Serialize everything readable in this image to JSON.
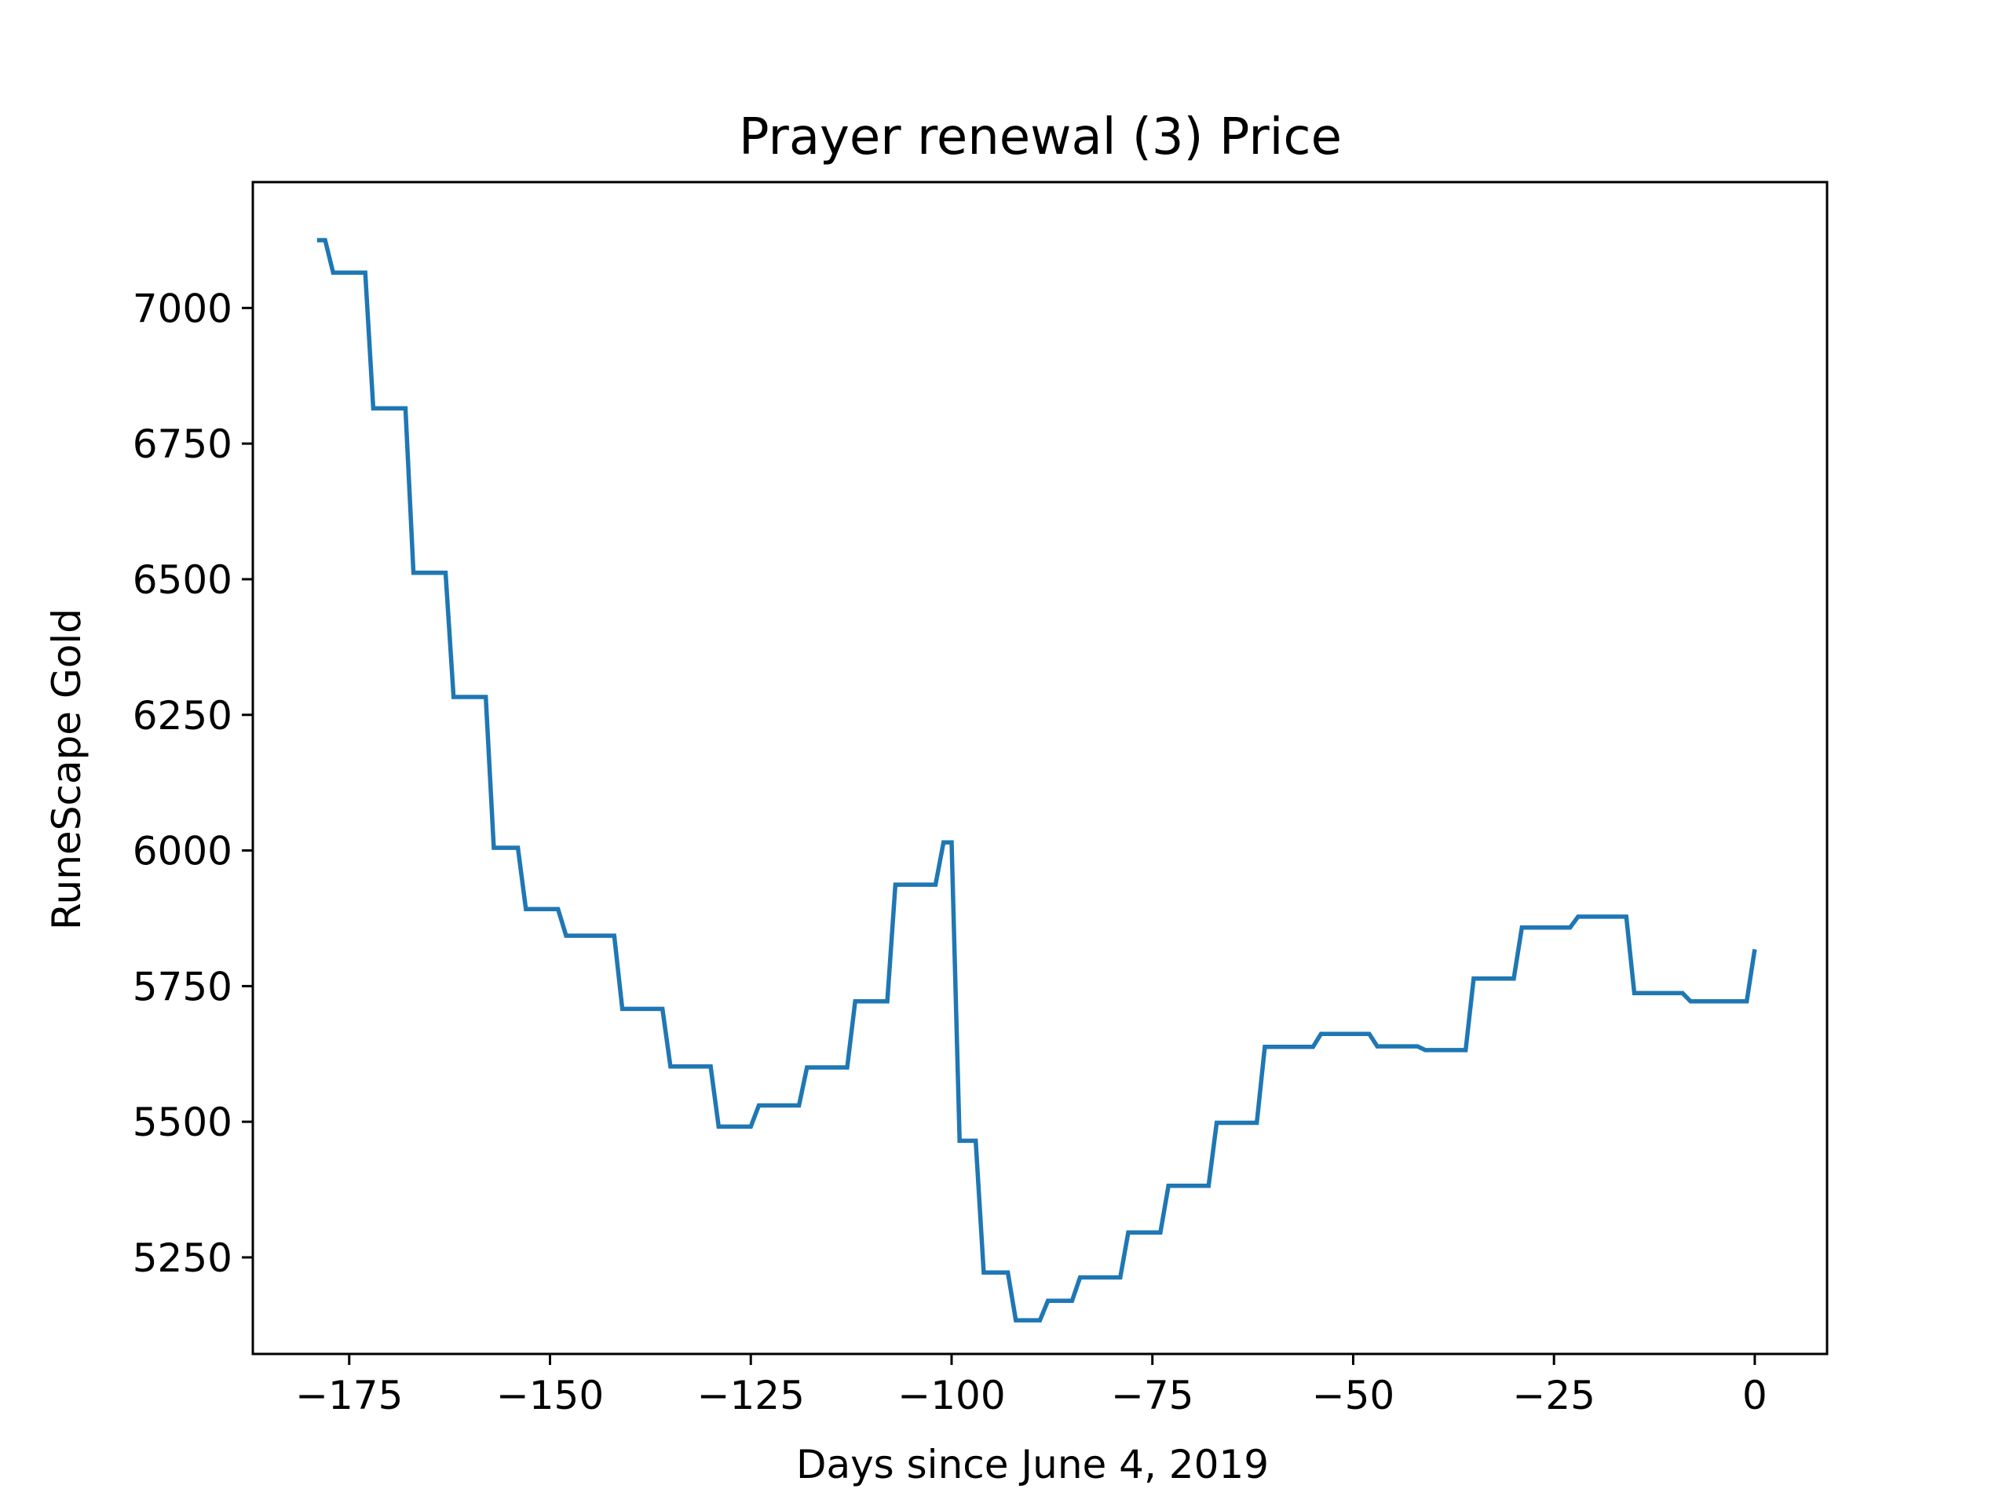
{
  "chart_data": {
    "type": "line",
    "title": "Prayer renewal (3) Price",
    "xlabel": "Days since June 4, 2019",
    "ylabel": "RuneScape Gold",
    "xlim": [
      -187,
      9
    ],
    "ylim": [
      5072,
      7232
    ],
    "xticks": [
      -175,
      -150,
      -125,
      -100,
      -75,
      -50,
      -25,
      0
    ],
    "xtick_labels": [
      "−175",
      "−150",
      "−125",
      "−100",
      "−75",
      "−50",
      "−25",
      "0"
    ],
    "yticks": [
      5250,
      5500,
      5750,
      6000,
      6250,
      6500,
      6750,
      7000
    ],
    "ytick_labels": [
      "5250",
      "5500",
      "5750",
      "6000",
      "6250",
      "6500",
      "6750",
      "7000"
    ],
    "grid": false,
    "line_color": "#1f77b4",
    "series": [
      {
        "x": [
          -179,
          -178,
          -177,
          -173,
          -172,
          -168,
          -167,
          -163,
          -162,
          -158,
          -157,
          -154,
          -153,
          -149,
          -148,
          -142,
          -141,
          -136,
          -135,
          -130,
          -129,
          -125,
          -124,
          -119,
          -118,
          -113,
          -112,
          -108,
          -107,
          -102,
          -101,
          -100,
          -99,
          -97,
          -96,
          -93,
          -92,
          -89,
          -88,
          -85,
          -84,
          -79,
          -78,
          -74,
          -73,
          -68,
          -67,
          -62,
          -61,
          -55,
          -54,
          -48,
          -47,
          -42,
          -41,
          -36,
          -35,
          -30,
          -29,
          -23,
          -22,
          -16,
          -15,
          -9,
          -8,
          -1,
          0
        ],
        "y": [
          7125,
          7125,
          7065,
          7065,
          6815,
          6815,
          6512,
          6512,
          6283,
          6283,
          6005,
          6005,
          5892,
          5892,
          5843,
          5843,
          5708,
          5708,
          5602,
          5602,
          5491,
          5491,
          5530,
          5530,
          5600,
          5600,
          5722,
          5722,
          5937,
          5937,
          6015,
          6015,
          5465,
          5465,
          5222,
          5222,
          5134,
          5134,
          5170,
          5170,
          5213,
          5213,
          5296,
          5296,
          5382,
          5382,
          5498,
          5498,
          5638,
          5638,
          5662,
          5662,
          5639,
          5639,
          5632,
          5632,
          5764,
          5764,
          5858,
          5858,
          5878,
          5878,
          5737,
          5737,
          5722,
          5722,
          5818
        ]
      }
    ]
  }
}
